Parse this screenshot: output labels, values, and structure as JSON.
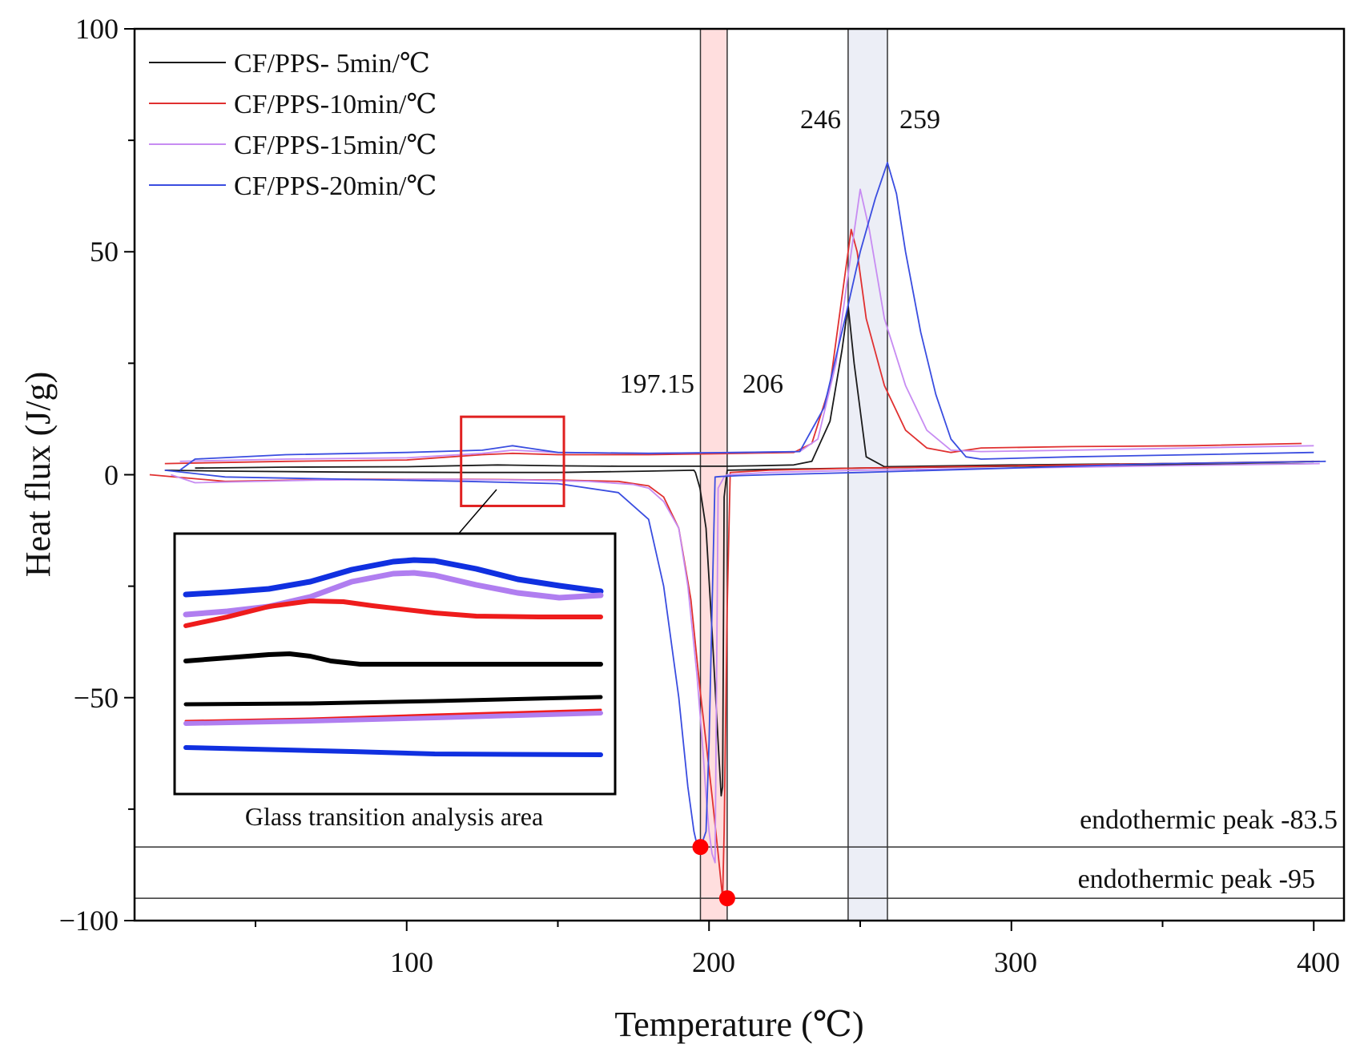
{
  "chart_data": {
    "type": "line",
    "title": "",
    "xlabel": "Temperature (℃)",
    "ylabel": "Heat flux (J/g)",
    "xlim": [
      10,
      410
    ],
    "ylim": [
      -100,
      100
    ],
    "x_ticks": [
      100,
      200,
      300,
      400
    ],
    "x_tick_labels": [
      "100",
      "200",
      "300",
      "400"
    ],
    "y_ticks": [
      100,
      50,
      0,
      -50,
      -100
    ],
    "y_tick_labels": [
      "100",
      "50",
      "0",
      "−50",
      "−100"
    ],
    "grid": false,
    "legend_position": "top-left",
    "series": [
      {
        "name": "CF/PPS- 5min/℃",
        "color": "#1a1a1a",
        "heating": {
          "x": [
            30,
            60,
            100,
            130,
            150,
            170,
            190,
            200,
            206,
            215,
            228,
            234,
            240,
            244,
            246,
            248,
            252,
            258,
            270,
            300,
            350,
            390,
            400
          ],
          "y": [
            1.5,
            1.7,
            1.8,
            2.2,
            2,
            1.9,
            1.9,
            1.9,
            1.9,
            2,
            2.2,
            3,
            12,
            28,
            38,
            25,
            4,
            1.8,
            1.9,
            2.2,
            2.5,
            2.8,
            3
          ]
        },
        "cooling": {
          "x": [
            400,
            350,
            300,
            250,
            220,
            206,
            205,
            204.5,
            204,
            203,
            201,
            199,
            197,
            195.5,
            195,
            180,
            150,
            120,
            80,
            40,
            20
          ],
          "y": [
            2.5,
            2.2,
            1.9,
            1.5,
            1.2,
            1,
            -5,
            -70,
            -72,
            -60,
            -35,
            -12,
            -3,
            0.5,
            1,
            0.8,
            0.5,
            0.5,
            0.6,
            0.8,
            1
          ]
        }
      },
      {
        "name": "CF/PPS-10min/℃",
        "color": "#e03030",
        "heating": {
          "x": [
            20,
            60,
            100,
            125,
            135,
            150,
            180,
            210,
            228,
            234,
            240,
            244,
            247,
            249,
            252,
            258,
            265,
            272,
            280,
            290,
            320,
            360,
            396
          ],
          "y": [
            2.5,
            3,
            3.3,
            4.5,
            4.8,
            4.5,
            4.5,
            4.8,
            5,
            7,
            20,
            40,
            55,
            50,
            35,
            20,
            10,
            6,
            5,
            6,
            6.3,
            6.5,
            7
          ]
        },
        "cooling": {
          "x": [
            402,
            350,
            300,
            250,
            220,
            207,
            206,
            205,
            204.5,
            203,
            201,
            199,
            197,
            194,
            190,
            185,
            180,
            170,
            150,
            120,
            80,
            40,
            15
          ],
          "y": [
            3,
            2.5,
            2,
            1.5,
            1,
            0.5,
            -30,
            -80,
            -95,
            -85,
            -72,
            -60,
            -48,
            -28,
            -12,
            -5,
            -2.5,
            -1.5,
            -1.2,
            -1,
            -1,
            -1.5,
            0
          ]
        }
      },
      {
        "name": "CF/PPS-15min/℃",
        "color": "#c78cf2",
        "heating": {
          "x": [
            25,
            60,
            100,
            125,
            135,
            150,
            180,
            210,
            230,
            236,
            242,
            246,
            250,
            253,
            258,
            265,
            272,
            280,
            290,
            320,
            360,
            400
          ],
          "y": [
            3,
            3.5,
            3.8,
            4.8,
            5.5,
            5,
            4.8,
            5,
            5.2,
            8,
            25,
            45,
            64,
            55,
            35,
            20,
            10,
            5.5,
            5.2,
            5.5,
            6,
            6.5
          ]
        },
        "cooling": {
          "x": [
            402,
            350,
            300,
            250,
            220,
            206,
            205,
            203,
            202,
            201,
            200,
            199,
            198,
            196,
            193,
            190,
            185,
            180,
            175,
            160,
            140,
            110,
            70,
            30,
            22
          ],
          "y": [
            2.5,
            2,
            1.5,
            1,
            0.5,
            0,
            -0.5,
            -3,
            -87,
            -85,
            -80,
            -72,
            -62,
            -45,
            -25,
            -12,
            -6,
            -3,
            -2.2,
            -1.5,
            -1.2,
            -1,
            -1.2,
            -1.8,
            0
          ]
        }
      },
      {
        "name": "CF/PPS-20min/℃",
        "color": "#3a4de0",
        "heating": {
          "x": [
            25,
            30,
            60,
            100,
            125,
            130,
            135,
            140,
            150,
            180,
            210,
            230,
            238,
            245,
            250,
            255,
            259,
            262,
            265,
            270,
            275,
            280,
            285,
            290,
            320,
            360,
            400
          ],
          "y": [
            1,
            3.5,
            4.5,
            5,
            5.5,
            6,
            6.5,
            6,
            5,
            4.8,
            5,
            5.2,
            15,
            35,
            50,
            62,
            70,
            63,
            50,
            32,
            18,
            8,
            4,
            3.5,
            4,
            4.5,
            5
          ]
        },
        "cooling": {
          "x": [
            404,
            350,
            300,
            250,
            220,
            210,
            204,
            202,
            201,
            200,
            199,
            198,
            197,
            196,
            195,
            193,
            190,
            185,
            180,
            170,
            150,
            120,
            80,
            40,
            20
          ],
          "y": [
            3,
            2.5,
            1.5,
            0.5,
            0,
            -0.2,
            -0.4,
            -0.5,
            -30,
            -60,
            -80,
            -82,
            -83.5,
            -83,
            -80,
            -70,
            -50,
            -25,
            -10,
            -4,
            -2,
            -1.5,
            -1,
            -0.5,
            1
          ]
        }
      }
    ],
    "shaded_regions": [
      {
        "x0": 197.15,
        "x1": 206,
        "color": "#ffdede"
      },
      {
        "x0": 246,
        "x1": 259,
        "color": "#eceef6"
      }
    ],
    "vertical_lines": [
      197.15,
      206,
      246,
      259
    ],
    "horizontal_lines": [
      -83.5,
      -95
    ],
    "peak_markers": [
      {
        "x": 197.15,
        "y": -83.5
      },
      {
        "x": 206,
        "y": -95
      }
    ],
    "annotations": {
      "v_197": "197.15",
      "v_206": "206",
      "v_246": "246",
      "v_259": "259",
      "h_83": "endothermic peak -83.5",
      "h_95": "endothermic peak -95"
    },
    "zoom_region": {
      "x0": 118,
      "x1": 152,
      "y0": -7,
      "y1": 13
    },
    "inset": {
      "title": "Glass transition analysis area",
      "curves": [
        {
          "color": "#1030e0",
          "width": 7,
          "pts": [
            [
              0,
              72
            ],
            [
              0.1,
              69
            ],
            [
              0.2,
              65
            ],
            [
              0.3,
              56
            ],
            [
              0.4,
              41
            ],
            [
              0.5,
              31
            ],
            [
              0.55,
              29
            ],
            [
              0.6,
              30
            ],
            [
              0.7,
              40
            ],
            [
              0.8,
              53
            ],
            [
              0.9,
              61
            ],
            [
              1,
              68
            ]
          ]
        },
        {
          "color": "#b07ef0",
          "width": 7,
          "pts": [
            [
              0,
              97
            ],
            [
              0.1,
              93
            ],
            [
              0.2,
              87
            ],
            [
              0.3,
              75
            ],
            [
              0.4,
              56
            ],
            [
              0.5,
              46
            ],
            [
              0.55,
              45
            ],
            [
              0.6,
              48
            ],
            [
              0.7,
              60
            ],
            [
              0.8,
              70
            ],
            [
              0.9,
              76
            ],
            [
              1,
              73
            ]
          ]
        },
        {
          "color": "#ee1c1c",
          "width": 6,
          "pts": [
            [
              0,
              111
            ],
            [
              0.1,
              100
            ],
            [
              0.2,
              87
            ],
            [
              0.3,
              80
            ],
            [
              0.38,
              81
            ],
            [
              0.45,
              86
            ],
            [
              0.6,
              95
            ],
            [
              0.7,
              99
            ],
            [
              0.85,
              100
            ],
            [
              1,
              100
            ]
          ]
        },
        {
          "color": "#000000",
          "width": 6,
          "pts": [
            [
              0,
              155
            ],
            [
              0.1,
              151
            ],
            [
              0.2,
              147
            ],
            [
              0.25,
              146
            ],
            [
              0.3,
              149
            ],
            [
              0.35,
              155
            ],
            [
              0.42,
              159
            ],
            [
              0.5,
              159
            ],
            [
              1,
              159
            ]
          ]
        },
        {
          "color": "#000000",
          "width": 5,
          "pts": [
            [
              0,
              209
            ],
            [
              0.3,
              208
            ],
            [
              0.6,
              205
            ],
            [
              1,
              200
            ]
          ]
        },
        {
          "color": "#ee1c1c",
          "width": 3,
          "pts": [
            [
              0,
              230
            ],
            [
              0.3,
              227
            ],
            [
              0.6,
              222
            ],
            [
              1,
              216
            ]
          ]
        },
        {
          "color": "#b07ef0",
          "width": 6,
          "pts": [
            [
              0,
              233
            ],
            [
              0.3,
              230
            ],
            [
              0.6,
              226
            ],
            [
              1,
              220
            ]
          ]
        },
        {
          "color": "#1030e0",
          "width": 6,
          "pts": [
            [
              0,
              263
            ],
            [
              0.4,
              268
            ],
            [
              0.6,
              271
            ],
            [
              1,
              272
            ]
          ]
        }
      ]
    }
  }
}
